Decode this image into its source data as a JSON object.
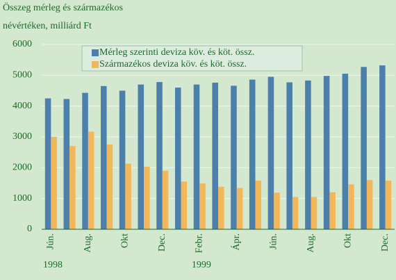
{
  "chart_data": {
    "type": "bar",
    "ylabel": [
      "Összeg mérleg és származékos",
      "névértéken, milliárd Ft"
    ],
    "categories": [
      "Jún.",
      null,
      "Aug.",
      null,
      "Okt",
      null,
      "Dec.",
      null,
      "Febr.",
      null,
      "Ápr.",
      null,
      "Jún.",
      null,
      "Aug.",
      null,
      "Okt",
      null,
      "Dec."
    ],
    "series": [
      {
        "name": "Mérleg szerinti deviza köv. és köt. össz.",
        "color": "#4d7fab",
        "values": [
          4250,
          4230,
          4430,
          4650,
          4500,
          4700,
          4780,
          4600,
          4700,
          4760,
          4660,
          4860,
          4950,
          4770,
          4830,
          4980,
          5050,
          5270,
          5320
        ]
      },
      {
        "name": "Származékos deviza köv. és köt. össz.",
        "color": "#f2b75a",
        "values": [
          3000,
          2700,
          3170,
          2750,
          2130,
          2030,
          1900,
          1550,
          1490,
          1380,
          1340,
          1580,
          1190,
          1050,
          1050,
          1200,
          1460,
          1600,
          1580
        ]
      }
    ],
    "years": [
      {
        "label": "1998",
        "at": 0
      },
      {
        "label": "1999",
        "at": 8
      }
    ],
    "ylim": [
      0,
      6000
    ],
    "yticks": [
      0,
      1000,
      2000,
      3000,
      4000,
      5000,
      6000
    ],
    "grid": true,
    "legend": "top"
  }
}
